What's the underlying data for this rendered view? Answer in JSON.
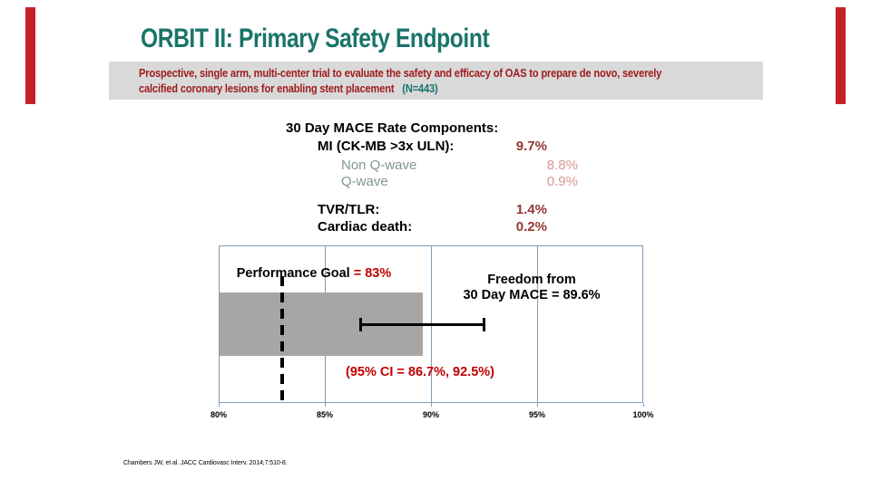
{
  "slide": {
    "title": "ORBIT II: Primary Safety Endpoint",
    "banner": {
      "line1": "Prospective, single arm, multi-center trial to evaluate the safety and efficacy of OAS to prepare de novo, severely",
      "line2": "calcified coronary lesions for enabling stent placement",
      "n_label": "(N=443)"
    },
    "citation": "Chambers JW, et al. JACC Cardiovasc Interv. 2014;7:510-8."
  },
  "mace_components": {
    "header": "30 Day MACE Rate Components:",
    "rows": [
      {
        "label": "MI (CK-MB >3x ULN):",
        "value": "9.7%"
      },
      {
        "label": "Non Q-wave",
        "value": "8.8%"
      },
      {
        "label": "Q-wave",
        "value": "0.9%"
      },
      {
        "label": "TVR/TLR:",
        "value": "1.4%"
      },
      {
        "label": "Cardiac death:",
        "value": "0.2%"
      }
    ]
  },
  "chart_data": {
    "type": "bar",
    "orientation": "horizontal",
    "series": [
      {
        "name": "Freedom from 30 Day MACE",
        "values": [
          89.6
        ]
      }
    ],
    "performance_goal_pct": 83,
    "ci_95_pct": [
      86.7,
      92.5
    ],
    "xlim": [
      80,
      100
    ],
    "x_tick_values": [
      80,
      85,
      90,
      95,
      100
    ],
    "x_tick_labels": [
      "80%",
      "85%",
      "90%",
      "95%",
      "100%"
    ],
    "grid": true,
    "legend": "none",
    "annotations": {
      "goal_prefix": "Performance Goal",
      "goal_value": " = 83%",
      "freedom_line1": "Freedom from",
      "freedom_line2": "30 Day MACE = 89.6%",
      "ci_label": "(95% CI = 86.7%, 92.5%)"
    }
  },
  "colors": {
    "title_teal": "#1A746B",
    "banner_bg": "#D9D9D9",
    "banner_text_red": "#9E1B1B",
    "side_bar_red": "#C42127",
    "accent_red": "#C00000",
    "value_dark_red": "#953735",
    "value_light_red": "#D99694",
    "label_teal_gray": "#7D9794",
    "bar_gray": "#A6A6A6",
    "grid_blue": "#7F9DB9"
  }
}
